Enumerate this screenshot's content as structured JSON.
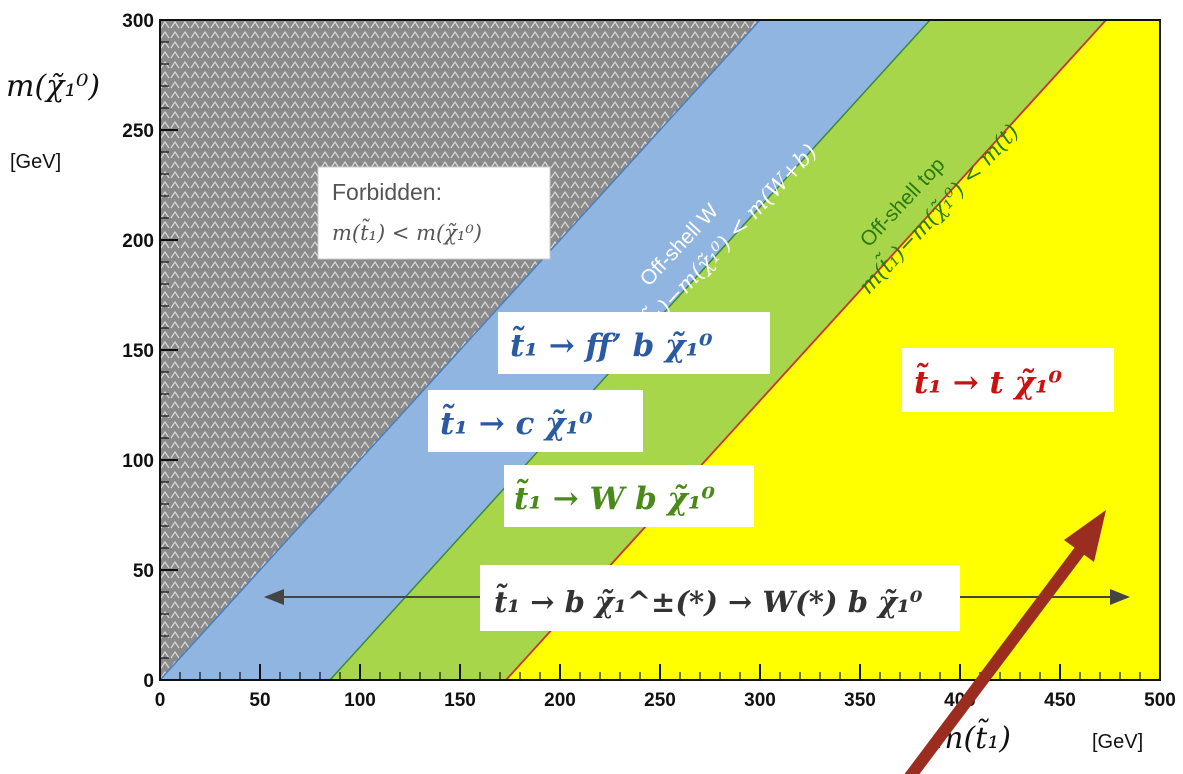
{
  "chart_data": {
    "type": "area",
    "title": "",
    "xlabel": "m(t̃₁)",
    "xunit": "[GeV]",
    "ylabel": "m(χ̃₁⁰)",
    "yunit": "[GeV]",
    "xlim": [
      0,
      500
    ],
    "ylim": [
      0,
      300
    ],
    "xticks": [
      "0",
      "50",
      "100",
      "150",
      "200",
      "250",
      "300",
      "350",
      "400",
      "450",
      "500"
    ],
    "yticks": [
      "0",
      "50",
      "100",
      "150",
      "200",
      "250",
      "300"
    ],
    "grid": false,
    "boundaries": [
      {
        "name": "m(t̃₁) = m(χ̃₁⁰)",
        "offset": 0,
        "color": "#4a7fc0"
      },
      {
        "name": "m(t̃₁) − m(χ̃₁⁰) = m(W+b)",
        "offset": 85,
        "color": "#3a8a3a"
      },
      {
        "name": "m(t̃₁) − m(χ̃₁⁰) = m(t)",
        "offset": 173,
        "color": "#cc3333"
      }
    ],
    "regions": [
      {
        "name": "forbidden",
        "color": "#8a8a8a"
      },
      {
        "name": "off-shell-W",
        "color": "#8fb5e0"
      },
      {
        "name": "off-shell-top",
        "color": "#a8d64a"
      },
      {
        "name": "on-shell-top",
        "color": "#ffff00"
      }
    ],
    "annotations": {
      "forbidden_line1": "Forbidden:",
      "forbidden_line2": "m(t̃₁) < m(χ̃₁⁰)",
      "offshell_w_line1": "Off-shell W",
      "offshell_w_line2": "m(t̃₁)−m(χ̃₁⁰) < m(W+b)",
      "offshell_top_line1": "Off-shell top",
      "offshell_top_line2": "m(t̃₁)−m(χ̃₁⁰) < m(t)",
      "decay_ffb": "t̃₁ → ff’ b χ̃₁⁰",
      "decay_c": "t̃₁ → c χ̃₁⁰",
      "decay_wb": "t̃₁ → W b χ̃₁⁰",
      "decay_t": "t̃₁ → t χ̃₁⁰",
      "decay_chargino": "t̃₁ → b χ̃₁^±(*) → W(*) b χ̃₁⁰"
    }
  },
  "colors": {
    "forbidden": "#8a8a8a",
    "blue_band": "#8fb5e0",
    "green_band": "#a8d64a",
    "yellow": "#ffff00",
    "ffb_text": "#2a5aa0",
    "c_text": "#2a5aa0",
    "wb_text": "#4a8a1a",
    "t_text": "#cc1111",
    "chargino_text": "#333333",
    "pointer": "#9b2d20"
  }
}
